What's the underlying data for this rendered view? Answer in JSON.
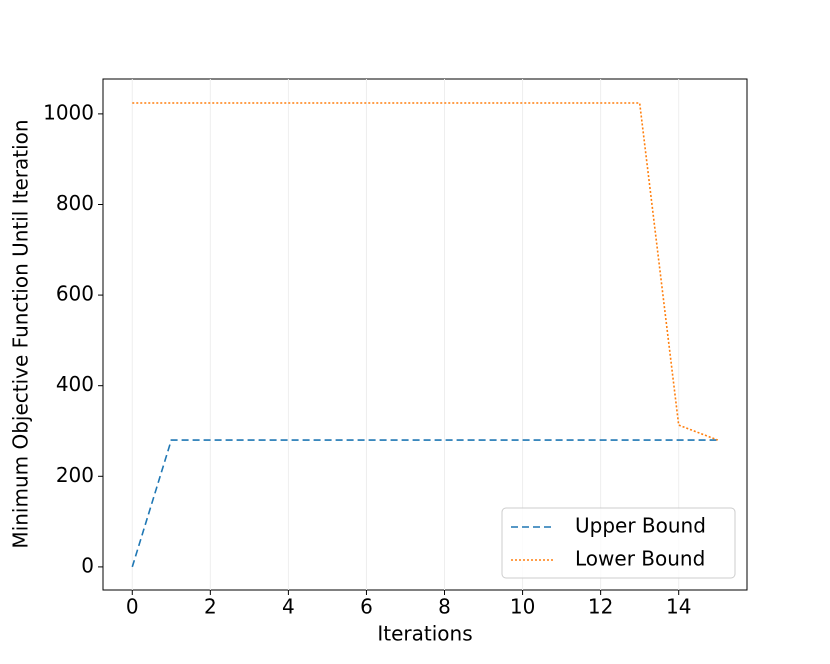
{
  "chart_data": {
    "type": "line",
    "x_label": "Iterations",
    "y_label": "Minimum Objective Function Until Iteration",
    "x": [
      0,
      1,
      2,
      3,
      4,
      5,
      6,
      7,
      8,
      9,
      10,
      11,
      12,
      13,
      14,
      15
    ],
    "series": [
      {
        "name": "Upper Bound",
        "color": "#1f77b4",
        "linestyle": "dashed",
        "values": [
          0,
          280,
          280,
          280,
          280,
          280,
          280,
          280,
          280,
          280,
          280,
          280,
          280,
          280,
          280,
          280
        ]
      },
      {
        "name": "Lower Bound",
        "color": "#ff7f0e",
        "linestyle": "dotted",
        "values": [
          1024,
          1024,
          1024,
          1024,
          1024,
          1024,
          1024,
          1024,
          1024,
          1024,
          1024,
          1024,
          1024,
          1024,
          313,
          280
        ]
      }
    ],
    "xlim": [
      -0.75,
      15.75
    ],
    "xticks": [
      0,
      2,
      4,
      6,
      8,
      10,
      12,
      14
    ],
    "ylim": [
      -51,
      1077
    ],
    "yticks": [
      0,
      200,
      400,
      600,
      800,
      1000
    ],
    "grid": "x",
    "legend": "lower right"
  }
}
